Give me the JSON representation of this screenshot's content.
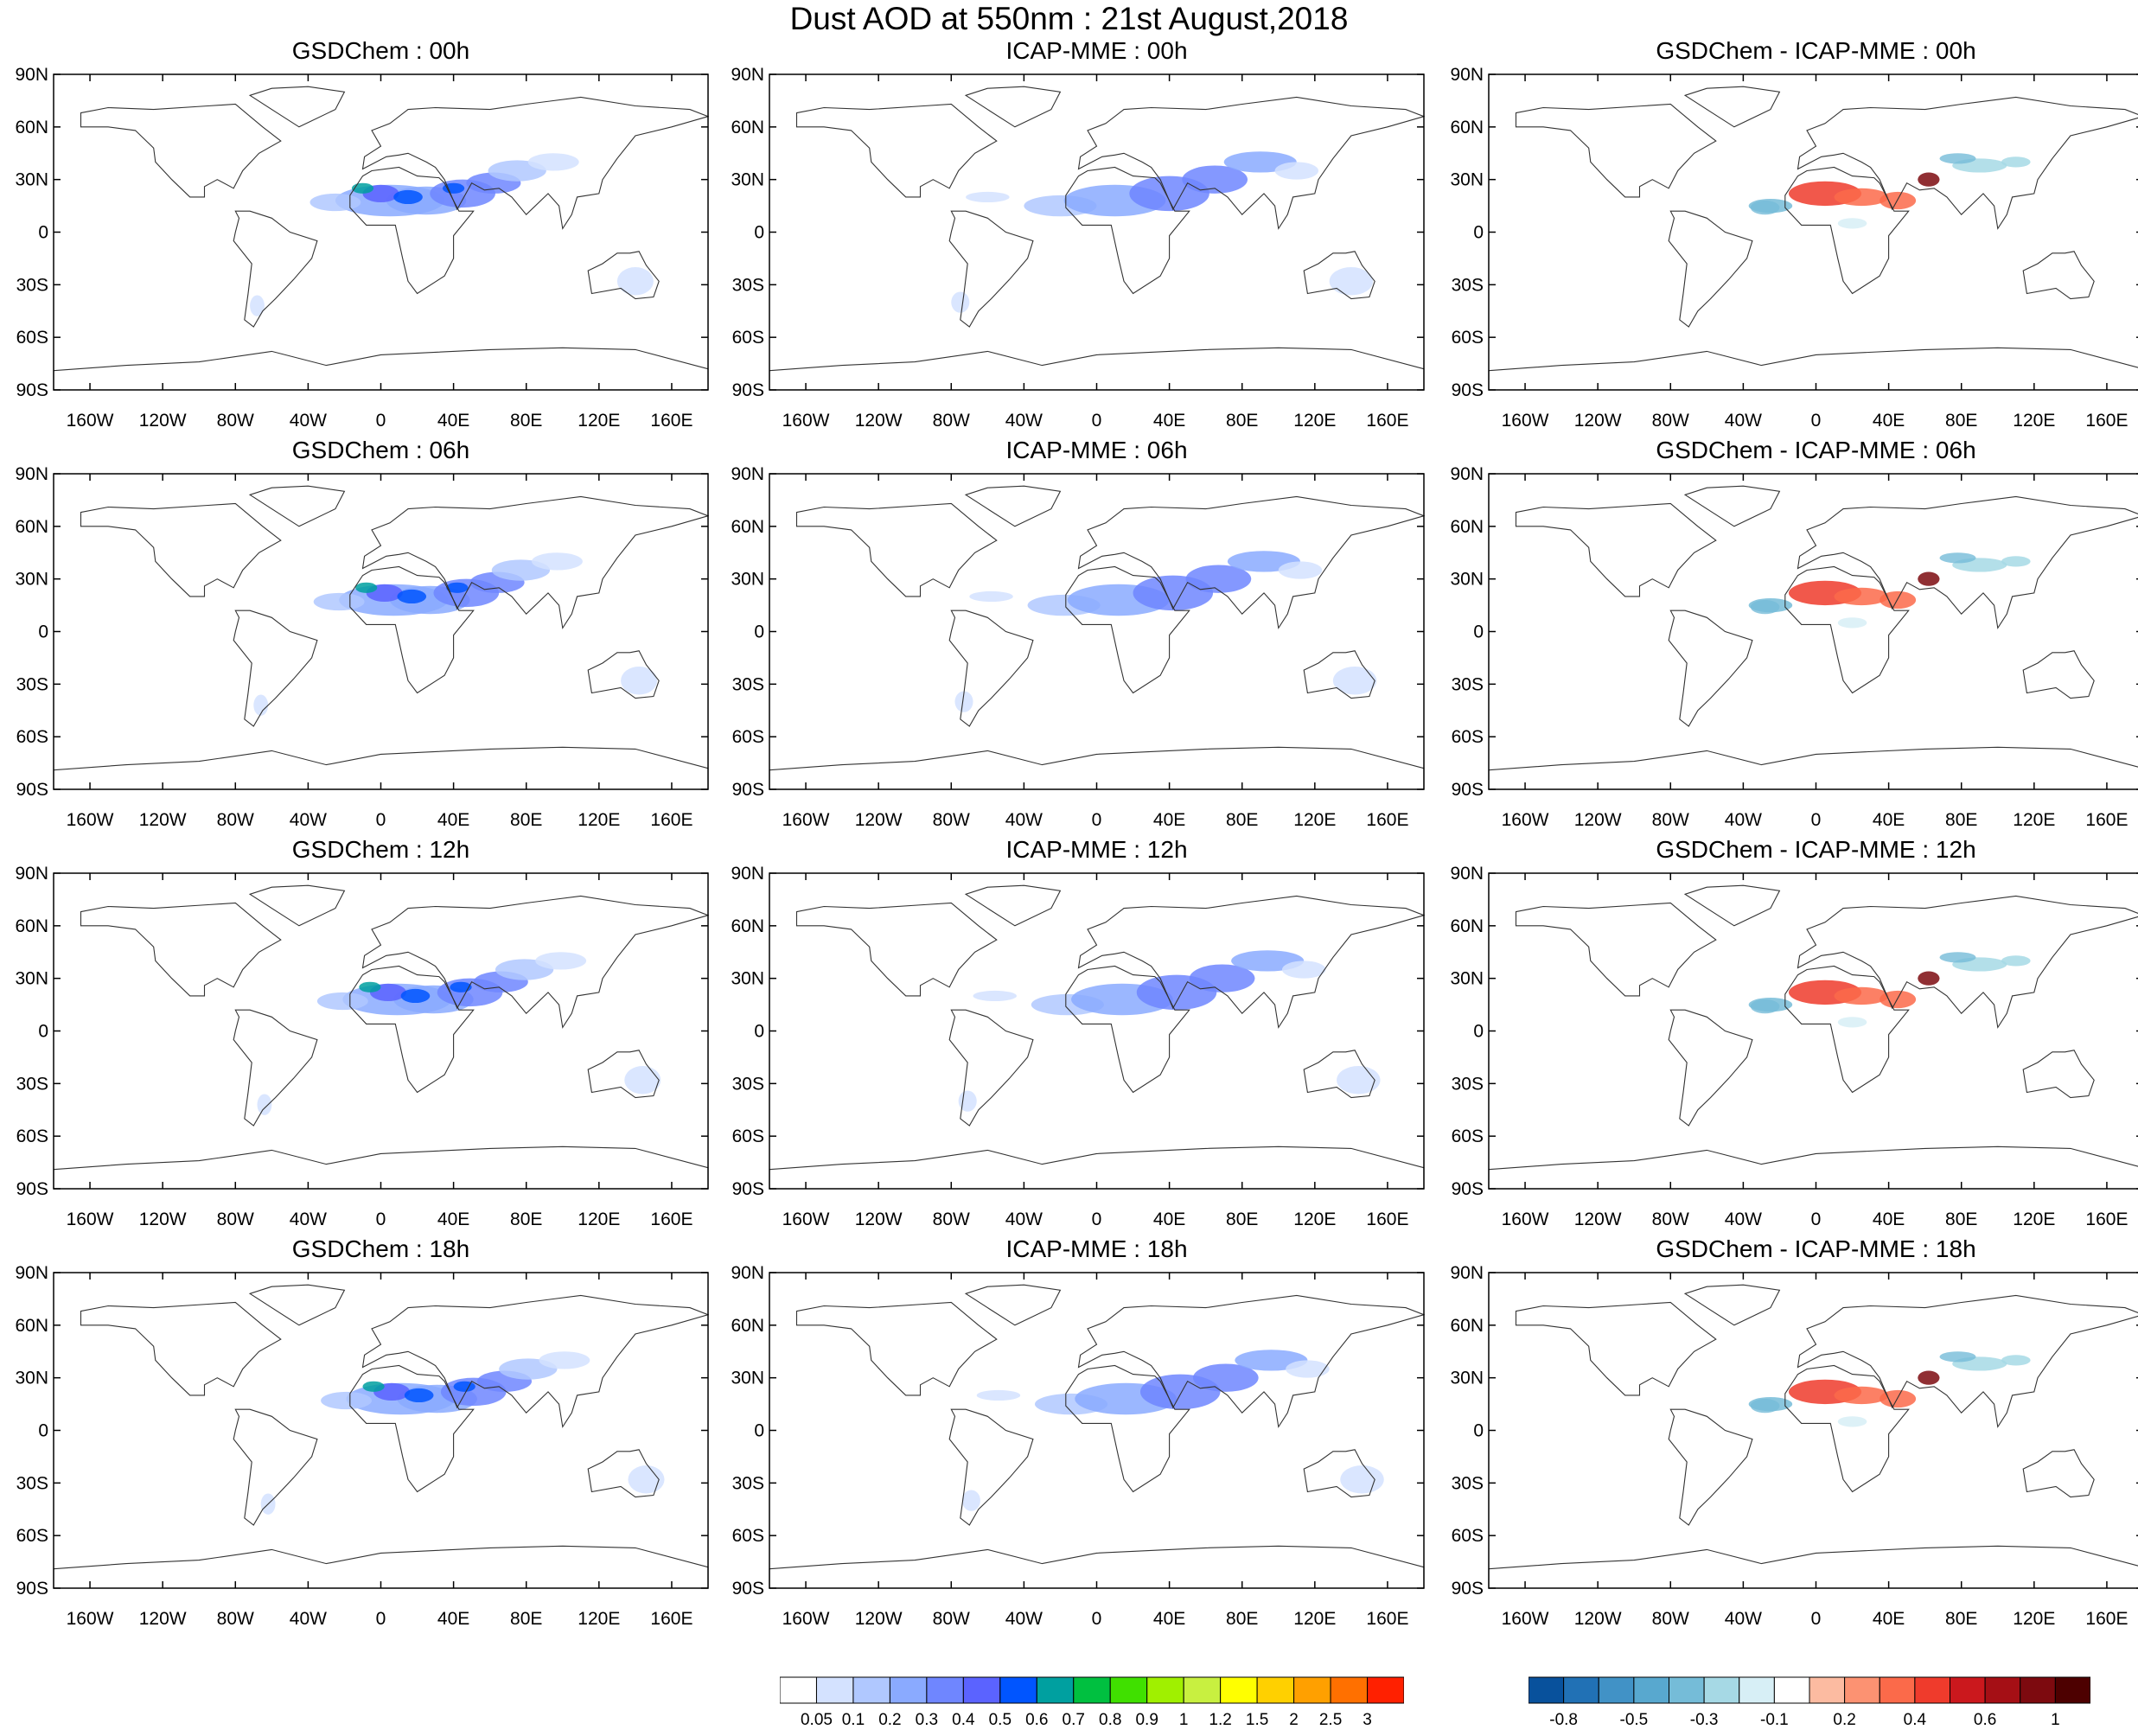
{
  "title": "Dust AOD at 550nm : 21st August,2018",
  "colors": {
    "land_outline": "#333333",
    "frame": "#000000",
    "dust_palette": [
      "#ffffff",
      "#d4e2ff",
      "#b0c8ff",
      "#8aaaff",
      "#6f86ff",
      "#5b63ff",
      "#0055ff",
      "#00a0a0",
      "#00c040",
      "#40e000",
      "#a0f000",
      "#c8f040",
      "#ffff00",
      "#ffd000",
      "#ffa000",
      "#ff7000",
      "#ff2000"
    ],
    "diff_palette": [
      "#08519c",
      "#2171b5",
      "#4192c6",
      "#58a8cf",
      "#75bcd8",
      "#a6d9e5",
      "#d7eff6",
      "#ffffff",
      "#fcbba1",
      "#fc9272",
      "#fb6a4a",
      "#ef3b2c",
      "#cb181d",
      "#a50f15",
      "#7d0a0f",
      "#4d0000"
    ]
  },
  "axes": {
    "lat_ticks": [
      "90N",
      "60N",
      "30N",
      "0",
      "30S",
      "60S",
      "90S"
    ],
    "lon_ticks": [
      "160W",
      "120W",
      "80W",
      "40W",
      "0",
      "40E",
      "80E",
      "120E",
      "160E"
    ]
  },
  "columns": [
    {
      "id": "gsd",
      "name": "GSDChem",
      "type": "dust"
    },
    {
      "id": "icap",
      "name": "ICAP-MME",
      "type": "dust"
    },
    {
      "id": "diff",
      "name": "GSDChem - ICAP-MME",
      "type": "diff"
    }
  ],
  "panels": [
    {
      "title": "GSDChem : 00h"
    },
    {
      "title": "ICAP-MME : 00h"
    },
    {
      "title": "GSDChem - ICAP-MME : 00h"
    },
    {
      "title": "GSDChem : 06h"
    },
    {
      "title": "ICAP-MME : 06h"
    },
    {
      "title": "GSDChem - ICAP-MME : 06h"
    },
    {
      "title": "GSDChem : 12h"
    },
    {
      "title": "ICAP-MME : 12h"
    },
    {
      "title": "GSDChem - ICAP-MME : 12h"
    },
    {
      "title": "GSDChem : 18h"
    },
    {
      "title": "ICAP-MME : 18h"
    },
    {
      "title": "GSDChem - ICAP-MME : 18h"
    }
  ],
  "colorbars": {
    "dust": {
      "labels": [
        "0.05",
        "0.1",
        "0.2",
        "0.3",
        "0.4",
        "0.5",
        "0.6",
        "0.7",
        "0.8",
        "0.9",
        "1",
        "1.2",
        "1.5",
        "2",
        "2.5",
        "3"
      ]
    },
    "diff": {
      "labels": [
        "-0.8",
        "-0.5",
        "-0.3",
        "-0.1",
        "0.2",
        "0.4",
        "0.6",
        "1"
      ]
    }
  }
}
